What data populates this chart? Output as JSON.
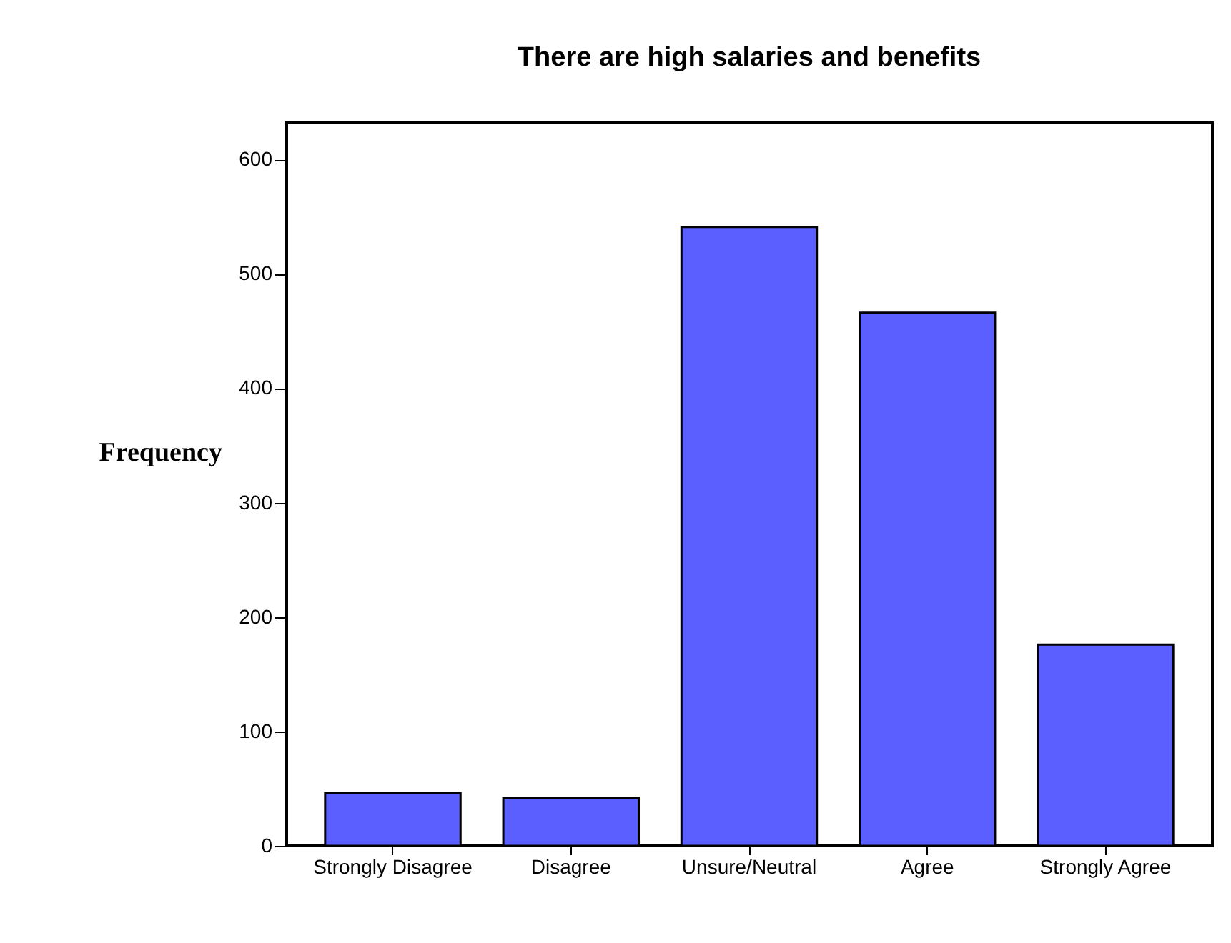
{
  "chart_data": {
    "type": "bar",
    "title": "There are high salaries and benefits",
    "ylabel": "Frequency",
    "categories": [
      "Strongly Disagree",
      "Disagree",
      "Unsure/Neutral",
      "Agree",
      "Strongly Agree"
    ],
    "values": [
      46,
      42,
      541,
      466,
      176
    ],
    "color": "#5b5fff",
    "ylim": [
      0,
      632
    ],
    "yticks": [
      0,
      100,
      200,
      300,
      400,
      500,
      600
    ],
    "grid": false
  }
}
